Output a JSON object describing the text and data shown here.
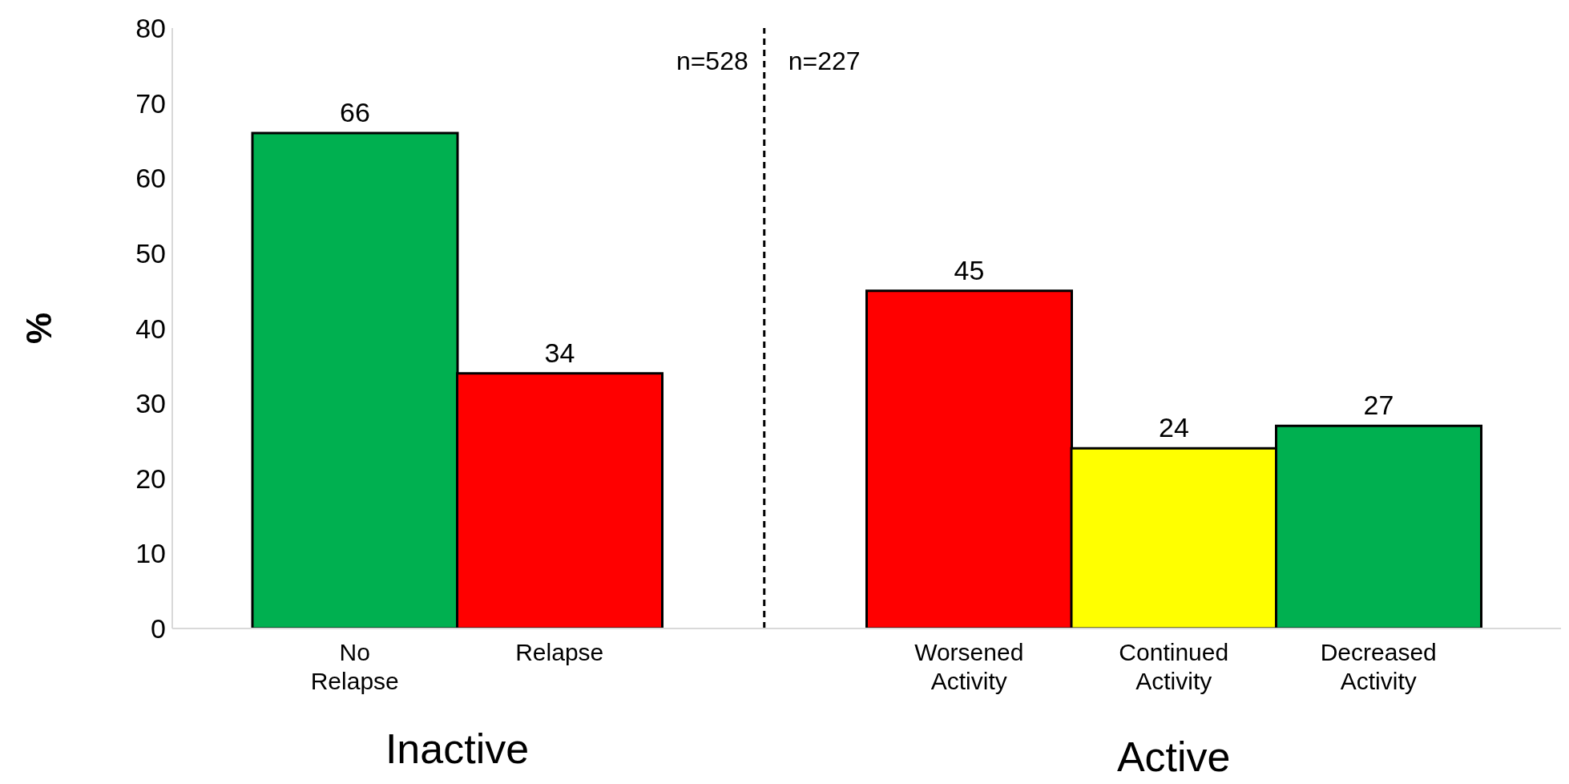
{
  "chart_data": {
    "type": "bar",
    "ylabel": "%",
    "categories": [
      "No Relapse",
      "Relapse",
      null,
      "Worsened Activity",
      "Continued Activity",
      "Decreased Activity"
    ],
    "values": [
      66,
      34,
      null,
      45,
      24,
      27
    ],
    "colors": [
      "#00b050",
      "#ff0000",
      "#ffffff",
      "#ff0000",
      "#ffff00",
      "#00b050"
    ],
    "ylim": [
      0,
      80
    ],
    "yticks": [
      0,
      10,
      20,
      30,
      40,
      50,
      60,
      70,
      80
    ],
    "data_labels": true,
    "ref_lines": [
      {
        "axis": "x",
        "value": null,
        "color": "#000000",
        "line_style": "dashed"
      }
    ],
    "annotations": [
      "n=528",
      "n=227",
      "Inactive",
      "Active"
    ]
  }
}
